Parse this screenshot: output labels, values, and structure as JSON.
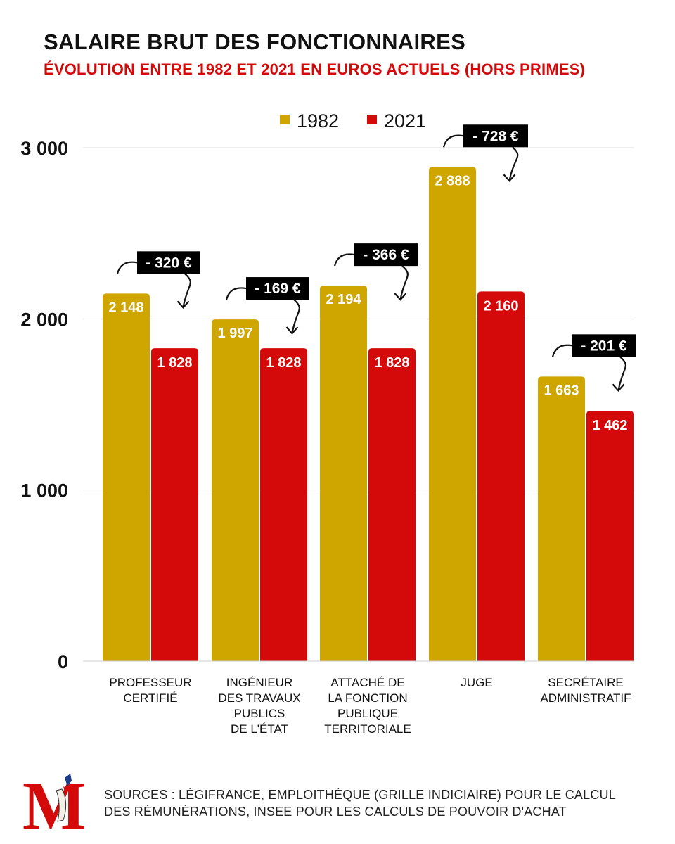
{
  "header": {
    "title": "SALAIRE BRUT DES FONCTIONNAIRES",
    "subtitle": "ÉVOLUTION ENTRE 1982 ET 2021 EN EUROS ACTUELS (HORS PRIMES)"
  },
  "colors": {
    "series_1982": "#cfa500",
    "series_2021": "#d40a0a",
    "callout_bg": "#000000",
    "callout_text": "#ffffff",
    "grid": "#dddddd"
  },
  "chart_data": {
    "type": "bar",
    "title": "SALAIRE BRUT DES FONCTIONNAIRES",
    "subtitle": "ÉVOLUTION ENTRE 1982 ET 2021 EN EUROS ACTUELS (HORS PRIMES)",
    "xlabel": "",
    "ylabel": "",
    "ylim": [
      0,
      3000
    ],
    "yticks": [
      0,
      1000,
      2000,
      3000
    ],
    "ytick_labels": [
      "0",
      "1 000",
      "2 000",
      "3 000"
    ],
    "grid": true,
    "legend_position": "top",
    "categories": [
      [
        "PROFESSEUR",
        "CERTIFIÉ"
      ],
      [
        "INGÉNIEUR",
        "DES TRAVAUX",
        "PUBLICS",
        "DE L'ÉTAT"
      ],
      [
        "ATTACHÉ DE",
        "LA FONCTION",
        "PUBLIQUE",
        "TERRITORIALE"
      ],
      [
        "JUGE"
      ],
      [
        "SECRÉTAIRE",
        "ADMINISTRATIF"
      ]
    ],
    "series": [
      {
        "name": "1982",
        "color": "#cfa500",
        "values": [
          2148,
          1997,
          2194,
          2888,
          1663
        ],
        "labels": [
          "2 148",
          "1 997",
          "2 194",
          "2 888",
          "1 663"
        ]
      },
      {
        "name": "2021",
        "color": "#d40a0a",
        "values": [
          1828,
          1828,
          1828,
          2160,
          1462
        ],
        "labels": [
          "1 828",
          "1 828",
          "1 828",
          "2 160",
          "1 462"
        ]
      }
    ],
    "annotations": [
      "- 320 €",
      "- 169 €",
      "- 366 €",
      "- 728 €",
      "- 201 €"
    ]
  },
  "footer": {
    "logo_letter": "M",
    "sources_line1": "SOURCES : LÉGIFRANCE, EMPLOITHÈQUE (GRILLE INDICIAIRE) POUR LE CALCUL",
    "sources_line2": "DES RÉMUNÉRATIONS, INSEE POUR LES CALCULS DE POUVOIR D'ACHAT"
  }
}
